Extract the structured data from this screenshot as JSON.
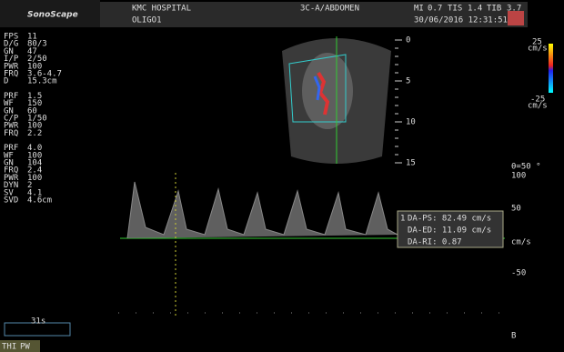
{
  "header": {
    "brand": "SonoScape",
    "hospital": "KMC HOSPITAL",
    "patient": "OLIGO1",
    "probe": "3C-A/ABDOMEN",
    "mi_label": "MI",
    "mi": "0.7",
    "tis_label": "TIS",
    "tis": "1.4",
    "tib_label": "TIB",
    "tib": "3.7",
    "datetime": "30/06/2016 12:31:51"
  },
  "params": [
    [
      [
        "FPS",
        "11"
      ],
      [
        "D/G",
        "80/3"
      ],
      [
        "GN",
        "47"
      ],
      [
        "I/P",
        "2/50"
      ],
      [
        "PWR",
        "100"
      ],
      [
        "FRQ",
        "3.6-4.7"
      ],
      [
        "D",
        "15.3cm"
      ]
    ],
    [
      [
        "PRF",
        "1.5"
      ],
      [
        "WF",
        "150"
      ],
      [
        "GN",
        "60"
      ],
      [
        "C/P",
        "1/50"
      ],
      [
        "PWR",
        "100"
      ],
      [
        "FRQ",
        "2.2"
      ]
    ],
    [
      [
        "PRF",
        "4.0"
      ],
      [
        "WF",
        "100"
      ],
      [
        "GN",
        "104"
      ],
      [
        "FRQ",
        "2.4"
      ],
      [
        "PWR",
        "100"
      ],
      [
        "DYN",
        "2"
      ],
      [
        "SV",
        "4.1"
      ],
      [
        "SVD",
        "4.6cm"
      ]
    ]
  ],
  "depth_scale": [
    "0",
    "5",
    "10",
    "15"
  ],
  "color_bar": {
    "top": "25",
    "top_unit": "cm/s",
    "bottom": "-25",
    "bottom_unit": "cm/s"
  },
  "doppler_scale": {
    "angle": "θ=50 °",
    "ticks": [
      "100",
      "50",
      "cm/s",
      "-50"
    ]
  },
  "measurements": {
    "index": "1",
    "items": [
      "DA-PS: 82.49 cm/s",
      "DA-ED: 11.09 cm/s",
      "DA-RI: 0.87"
    ]
  },
  "footer": {
    "sweep": "31s",
    "thi": "THI",
    "pw": "PW",
    "marker": "B"
  }
}
